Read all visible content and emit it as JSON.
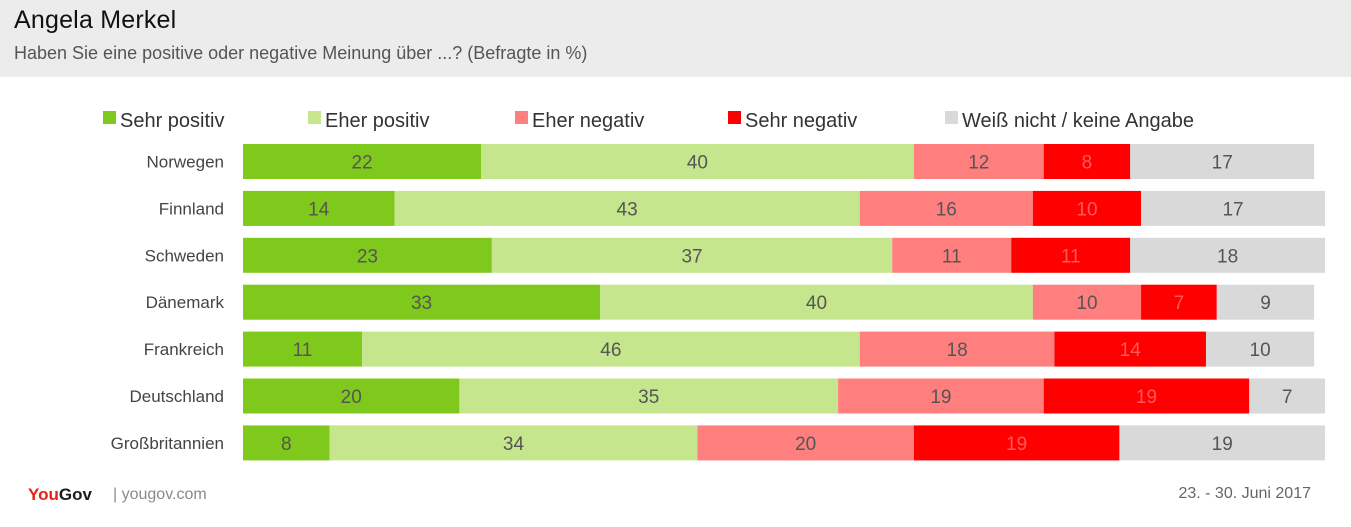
{
  "header": {
    "title": "Angela Merkel",
    "subtitle": "Haben Sie eine positive oder negative Meinung über ...? (Befragte in %)"
  },
  "footer": {
    "logo_you": "You",
    "logo_gov": "Gov",
    "site": "| yougov.com",
    "date": "23. - 30. Juni 2017"
  },
  "chart_data": {
    "type": "bar",
    "orientation": "horizontal",
    "stacked": true,
    "legend_position": "top",
    "grid": false,
    "categories": [
      "Norwegen",
      "Finnland",
      "Schweden",
      "Dänemark",
      "Frankreich",
      "Deutschland",
      "Großbritannien"
    ],
    "series": [
      {
        "name": "Sehr positiv",
        "color": "#7ec91c",
        "label_color": "#555555",
        "values": [
          22,
          14,
          23,
          33,
          11,
          20,
          8
        ]
      },
      {
        "name": "Eher positiv",
        "color": "#c5e68d",
        "label_color": "#555555",
        "values": [
          40,
          43,
          37,
          40,
          46,
          35,
          34
        ]
      },
      {
        "name": "Eher negativ",
        "color": "#ff7f7f",
        "label_color": "#555555",
        "values": [
          12,
          16,
          11,
          10,
          18,
          19,
          20
        ]
      },
      {
        "name": "Sehr negativ",
        "color": "#ff0000",
        "label_color": "#ff5a5a",
        "values": [
          8,
          10,
          11,
          7,
          14,
          19,
          19
        ]
      },
      {
        "name": "Weiß nicht /  keine Angabe",
        "color": "#d9d9d9",
        "label_color": "#555555",
        "values": [
          17,
          17,
          18,
          9,
          10,
          7,
          19
        ]
      }
    ]
  }
}
